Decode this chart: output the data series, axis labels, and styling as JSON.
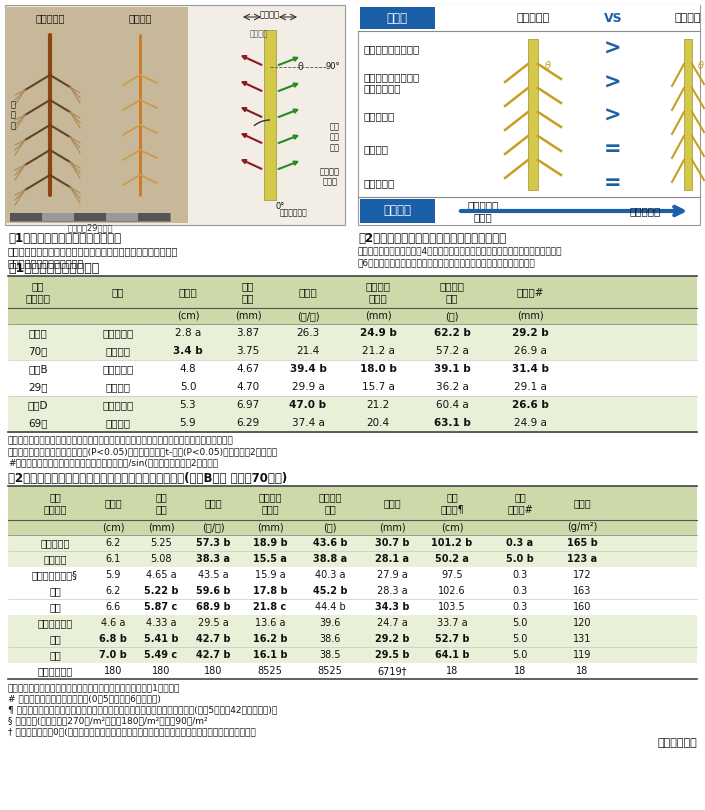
{
  "table1_title": "表1　根の形質の品種間差",
  "table1_data": [
    [
      "福島枠",
      "にじゆたか",
      "2.8 a",
      "3.87",
      "26.3",
      "24.9 b",
      "62.2 b",
      "29.2 b"
    ],
    [
      "70日",
      "階上早生",
      "3.4 b",
      "3.75",
      "21.4",
      "21.2 a",
      "57.2 a",
      "26.9 a"
    ],
    [
      "盛岡B",
      "にじゆたか",
      "4.8",
      "4.67",
      "39.4 b",
      "18.0 b",
      "39.1 b",
      "31.4 b"
    ],
    [
      "29日",
      "階上早生",
      "5.0",
      "4.70",
      "29.9 a",
      "15.7 a",
      "36.2 a",
      "29.1 a"
    ],
    [
      "盛岡D",
      "にじゆたか",
      "5.3",
      "6.97",
      "47.0 b",
      "21.2",
      "60.4 a",
      "26.6 b"
    ],
    [
      "69日",
      "階上早生",
      "5.9",
      "6.29",
      "37.4 a",
      "20.4",
      "63.1 b",
      "24.9 a"
    ]
  ],
  "table1_note1": "・結果は平均値で示す。各処理区で異なるアルファベットを付した値は分散分析後の最小有意",
  "table1_note2": "差検定で有意差があることを示す(P<0.05)。但し福島枠はt-検定(P<0.05)による。表2も同じ。",
  "table1_note3": "#側根長は計算によって出した。側根張り出し長/sin(側根開幅角度）表2も同じ。",
  "table2_title": "表2　播種密度が根の形質、倒伏、子実重に及ぼす影響(盛岡B圃場 播種後70日目)",
  "table2_data": [
    [
      "にじゆたか",
      "6.2",
      "5.25",
      "57.3 b",
      "18.9 b",
      "43.6 b",
      "30.7 b",
      "101.2 b",
      "0.3 a",
      "165 b"
    ],
    [
      "階上早生",
      "6.1",
      "5.08",
      "38.3 a",
      "15.5 a",
      "38.8 a",
      "28.1 a",
      "50.2 a",
      "5.0 b",
      "123 a"
    ],
    [
      "にじゆたか・高§",
      "5.9",
      "4.65 a",
      "43.5 a",
      "15.9 a",
      "40.3 a",
      "27.9 a",
      "97.5",
      "0.3",
      "172"
    ],
    [
      "　中",
      "6.2",
      "5.22 b",
      "59.6 b",
      "17.8 b",
      "45.2 b",
      "28.3 a",
      "102.6",
      "0.3",
      "163"
    ],
    [
      "　低",
      "6.6",
      "5.87 c",
      "68.9 b",
      "21.8 c",
      "44.4 b",
      "34.3 b",
      "103.5",
      "0.3",
      "160"
    ],
    [
      "階上早生・高",
      "4.6 a",
      "4.33 a",
      "29.5 a",
      "13.6 a",
      "39.6",
      "24.7 a",
      "33.7 a",
      "5.0",
      "120"
    ],
    [
      "　中",
      "6.8 b",
      "5.41 b",
      "42.7 b",
      "16.2 b",
      "38.6",
      "29.2 b",
      "52.7 b",
      "5.0",
      "131"
    ],
    [
      "　低",
      "7.0 b",
      "5.49 c",
      "42.7 b",
      "16.1 b",
      "38.5",
      "29.5 b",
      "64.1 b",
      "5.0",
      "119"
    ],
    [
      "全サンプル数",
      "180",
      "180",
      "180",
      "8525",
      "8525",
      "6719†",
      "18",
      "18",
      "18"
    ]
  ],
  "table2_note1": "・結果は平均値で示す。アルファベットの意味については表1を参照。",
  "table2_note2": "# 地上で観測した達観による値(0〜5基までの6段階評価)",
  "table2_note3": "¶ 空撮画像から立体画像を作成し、処理区の平均の草冠高さを計算で出した(倒伏5日後の42日目に計測)。",
  "table2_note4": "§ 播種密度(散播）高＝270粒/m²、中＝180粒/m²、低＝90粒/m²",
  "table2_note5": "† 側根開幅角度が0度(真下向き）の場合は側根長が計算できない。そのためデータ数が少なくなる。",
  "author": "（村上敏文）",
  "bg_color": "#ffffff",
  "table_header_bg": "#cdd9a8",
  "table_shaded_bg": "#e8f0d8",
  "table_row_bg1": "#ffffff",
  "fig1_caption": "図1　両品種の根の様子と調査部位",
  "fig1_sub1": "　主根は茎につながる太い主根のみ、側根は垂れ下がらない硬い",
  "fig1_sub2": "部分のみを測定対象とした。",
  "fig2_caption": "図2　両品種の根の形質比較と播種密度の影響",
  "fig2_sub1": "　にじゆたかの方が側根の4形質が大きい。両品種とも低播種密度の方が側根、主根",
  "fig2_sub2": "の6形質が大きい。これらの特性が倒伏が少なくなる要因と考えられる。",
  "header_blue": "#1a5fa8",
  "fig2_rows": [
    "・硬い側根開幅角度",
    "・硬い側根の張出長\n　　〃　全長",
    "・側根の数",
    "・主根長",
    "・主根直径"
  ],
  "fig2_symbols": [
    ">",
    ">",
    ">",
    "=",
    "="
  ]
}
